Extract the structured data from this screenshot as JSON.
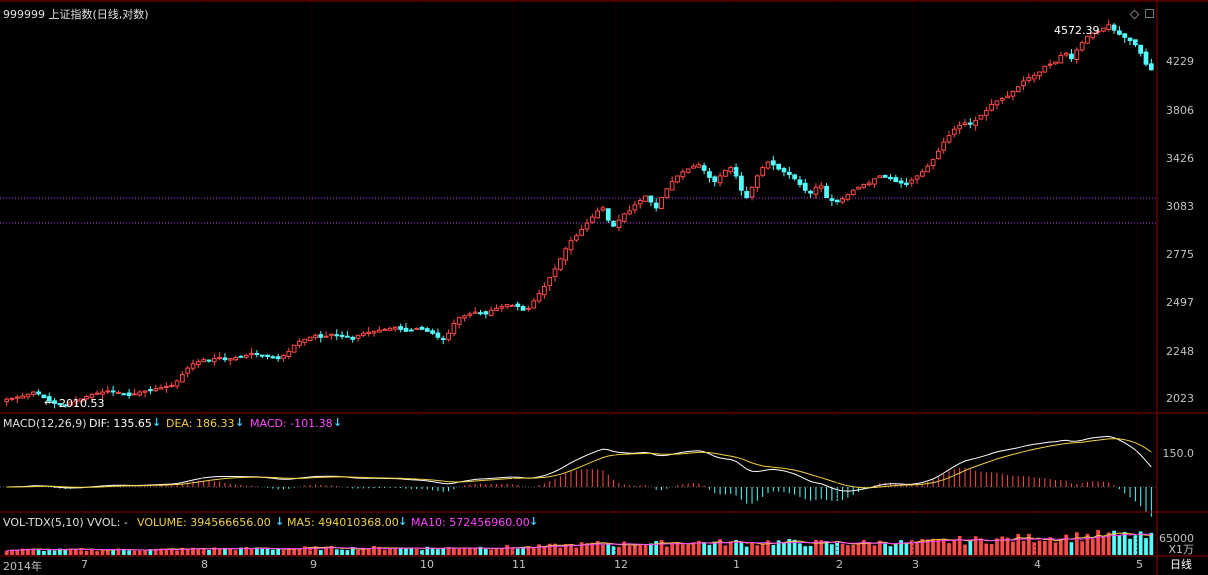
{
  "header": {
    "title": "999999 上证指数(日线,对数)"
  },
  "price_panel": {
    "y_ticks": [
      "4229",
      "3806",
      "3426",
      "3083",
      "2775",
      "2497",
      "2248",
      "2023"
    ],
    "high_label": "4572.39",
    "low_label": "2010.53",
    "low_arrow": "←"
  },
  "macd_panel": {
    "name": "MACD(12,26,9)",
    "dif_label": "DIF: 135.65",
    "dea_label": "DEA: 186.33",
    "macd_label": "MACD: -101.38",
    "arrow": "↓",
    "y_tick": "150.0"
  },
  "vol_panel": {
    "name": "VOL-TDX(5,10)",
    "vvol_label": "VVOL: -",
    "volume_label": "VOLUME: 394566656.00",
    "ma5_label": "MA5: 494010368.00",
    "ma10_label": "MA10: 572456960.00",
    "arrow": "↓",
    "y_tick": "65000",
    "unit_label": "X1万"
  },
  "x_axis": {
    "months": [
      "2014年",
      "7",
      "8",
      "9",
      "10",
      "11",
      "12",
      "1",
      "2",
      "3",
      "4",
      "5"
    ],
    "period_label": "日线"
  },
  "colors": {
    "up": "#ff4a4a",
    "down": "#54ffff",
    "dif": "#ffffff",
    "dea": "#f0d040",
    "macd": "#ff44ff",
    "guide_line": "#b040ff",
    "axis": "#8b0000"
  },
  "chart_data": {
    "type": "candlestick",
    "title": "999999 上证指数(日线,对数)",
    "scale": "log",
    "x": "daily, 2014-06 to 2015-05",
    "ylim": [
      2000,
      4600
    ],
    "annotations": [
      {
        "label": "4572.39",
        "type": "max"
      },
      {
        "label": "2010.53",
        "type": "min"
      }
    ],
    "closes": [
      2038,
      2042,
      2048,
      2052,
      2060,
      2070,
      2062,
      2045,
      2030,
      2020,
      2015,
      2010,
      2025,
      2035,
      2040,
      2050,
      2060,
      2065,
      2070,
      2075,
      2072,
      2068,
      2060,
      2055,
      2062,
      2070,
      2075,
      2080,
      2085,
      2090,
      2095,
      2100,
      2120,
      2150,
      2180,
      2200,
      2210,
      2220,
      2215,
      2225,
      2230,
      2220,
      2225,
      2230,
      2235,
      2240,
      2250,
      2245,
      2240,
      2235,
      2230,
      2225,
      2240,
      2260,
      2290,
      2310,
      2320,
      2330,
      2340,
      2330,
      2335,
      2345,
      2340,
      2335,
      2330,
      2320,
      2340,
      2350,
      2355,
      2360,
      2365,
      2370,
      2375,
      2380,
      2370,
      2360,
      2365,
      2375,
      2370,
      2360,
      2350,
      2330,
      2320,
      2350,
      2400,
      2430,
      2440,
      2450,
      2460,
      2455,
      2450,
      2470,
      2480,
      2490,
      2500,
      2495,
      2490,
      2470,
      2480,
      2520,
      2560,
      2600,
      2650,
      2700,
      2760,
      2820,
      2870,
      2900,
      2940,
      2980,
      3020,
      3060,
      3080,
      3000,
      2960,
      3000,
      3040,
      3060,
      3100,
      3130,
      3160,
      3120,
      3080,
      3150,
      3210,
      3260,
      3300,
      3330,
      3350,
      3370,
      3380,
      3340,
      3290,
      3260,
      3300,
      3340,
      3360,
      3300,
      3200,
      3150,
      3220,
      3300,
      3360,
      3400,
      3380,
      3350,
      3330,
      3310,
      3280,
      3240,
      3200,
      3180,
      3220,
      3230,
      3150,
      3130,
      3120,
      3140,
      3170,
      3200,
      3220,
      3240,
      3250,
      3280,
      3300,
      3290,
      3280,
      3260,
      3250,
      3240,
      3270,
      3300,
      3330,
      3370,
      3420,
      3480,
      3550,
      3600,
      3650,
      3680,
      3700,
      3690,
      3720,
      3760,
      3800,
      3850,
      3880,
      3900,
      3920,
      3960,
      4000,
      4050,
      4080,
      4100,
      4130,
      4180,
      4200,
      4220,
      4280,
      4300,
      4250,
      4330,
      4400,
      4460,
      4490,
      4510,
      4540,
      4572,
      4520,
      4480,
      4450,
      4420,
      4380,
      4300,
      4200,
      4150
    ]
  }
}
